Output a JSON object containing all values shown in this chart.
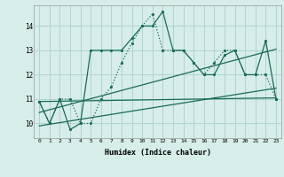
{
  "xlabel": "Humidex (Indice chaleur)",
  "x_ticks": [
    0,
    1,
    2,
    3,
    4,
    5,
    6,
    7,
    8,
    9,
    10,
    11,
    12,
    13,
    14,
    15,
    16,
    17,
    18,
    19,
    20,
    21,
    22,
    23
  ],
  "y_ticks": [
    10,
    11,
    12,
    13,
    14
  ],
  "ylim": [
    9.4,
    14.85
  ],
  "xlim": [
    -0.5,
    23.5
  ],
  "bg_color": "#d6ede9",
  "grid_color": "#b0d4ce",
  "line_color": "#1a6b5a",
  "series1_x": [
    0,
    1,
    2,
    3,
    4,
    5,
    6,
    7,
    8,
    9,
    10,
    11,
    12,
    13,
    14,
    15,
    16,
    17,
    18,
    19,
    20,
    21,
    22,
    23
  ],
  "series1_y": [
    10.9,
    10.0,
    11.0,
    9.75,
    10.0,
    13.0,
    13.0,
    13.0,
    13.0,
    13.5,
    14.0,
    14.0,
    14.6,
    13.0,
    13.0,
    12.5,
    12.0,
    12.0,
    12.8,
    13.0,
    12.0,
    12.0,
    13.4,
    11.0
  ],
  "series2_x": [
    0,
    1,
    2,
    3,
    4,
    5,
    6,
    7,
    8,
    9,
    10,
    11,
    12,
    13,
    14,
    15,
    16,
    17,
    18,
    19,
    20,
    21,
    22,
    23
  ],
  "series2_y": [
    10.9,
    10.0,
    11.0,
    11.0,
    10.0,
    10.0,
    11.0,
    11.5,
    12.5,
    13.3,
    14.0,
    14.5,
    13.0,
    13.0,
    13.0,
    12.5,
    12.0,
    12.5,
    13.0,
    13.0,
    12.0,
    12.0,
    12.0,
    11.0
  ],
  "line1_x": [
    0,
    23
  ],
  "line1_y": [
    10.9,
    11.05
  ],
  "line2_x": [
    0,
    23
  ],
  "line2_y": [
    10.45,
    13.05
  ],
  "line3_x": [
    0,
    23
  ],
  "line3_y": [
    9.9,
    11.45
  ]
}
